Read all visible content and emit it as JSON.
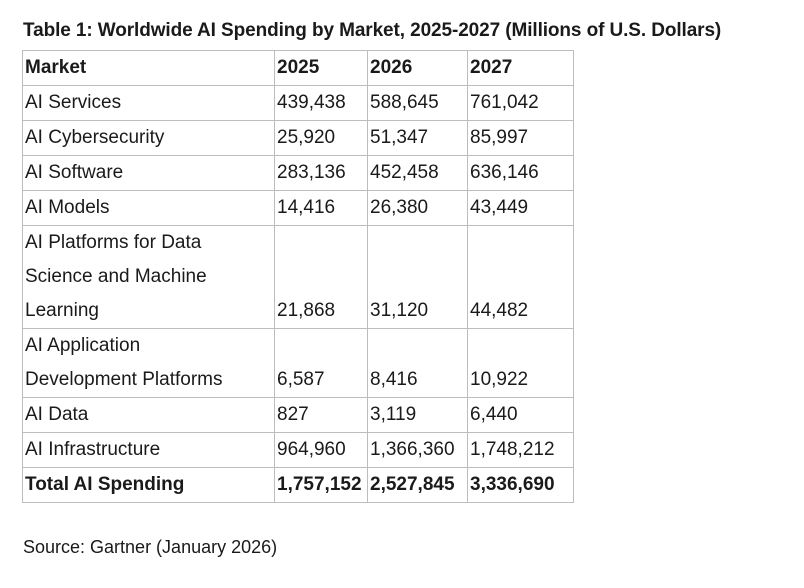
{
  "title": "Table 1: Worldwide AI Spending by Market, 2025-2027 (Millions of U.S. Dollars)",
  "source": "Source: Gartner (January 2026)",
  "chart_data": {
    "type": "table",
    "title": "Table 1: Worldwide AI Spending by Market, 2025-2027 (Millions of U.S. Dollars)",
    "columns": [
      "Market",
      "2025",
      "2026",
      "2027"
    ],
    "rows": [
      {
        "market": "AI Services",
        "y2025": "439,438",
        "y2026": "588,645",
        "y2027": "761,042"
      },
      {
        "market": "AI Cybersecurity",
        "y2025": "25,920",
        "y2026": "51,347",
        "y2027": "85,997"
      },
      {
        "market": "AI Software",
        "y2025": "283,136",
        "y2026": "452,458",
        "y2027": "636,146"
      },
      {
        "market": "AI Models",
        "y2025": "14,416",
        "y2026": "26,380",
        "y2027": "43,449"
      },
      {
        "market": "AI Platforms for Data Science and Machine Learning",
        "y2025": "21,868",
        "y2026": "31,120",
        "y2027": "44,482"
      },
      {
        "market": "AI Application Development Platforms",
        "y2025": "6,587",
        "y2026": "8,416",
        "y2027": "10,922"
      },
      {
        "market": "AI Data",
        "y2025": "827",
        "y2026": "3,119",
        "y2027": "6,440"
      },
      {
        "market": "AI Infrastructure",
        "y2025": "964,960",
        "y2026": "1,366,360",
        "y2027": "1,748,212"
      }
    ],
    "total": {
      "market": "Total AI Spending",
      "y2025": "1,757,152",
      "y2026": "2,527,845",
      "y2027": "3,336,690"
    }
  }
}
